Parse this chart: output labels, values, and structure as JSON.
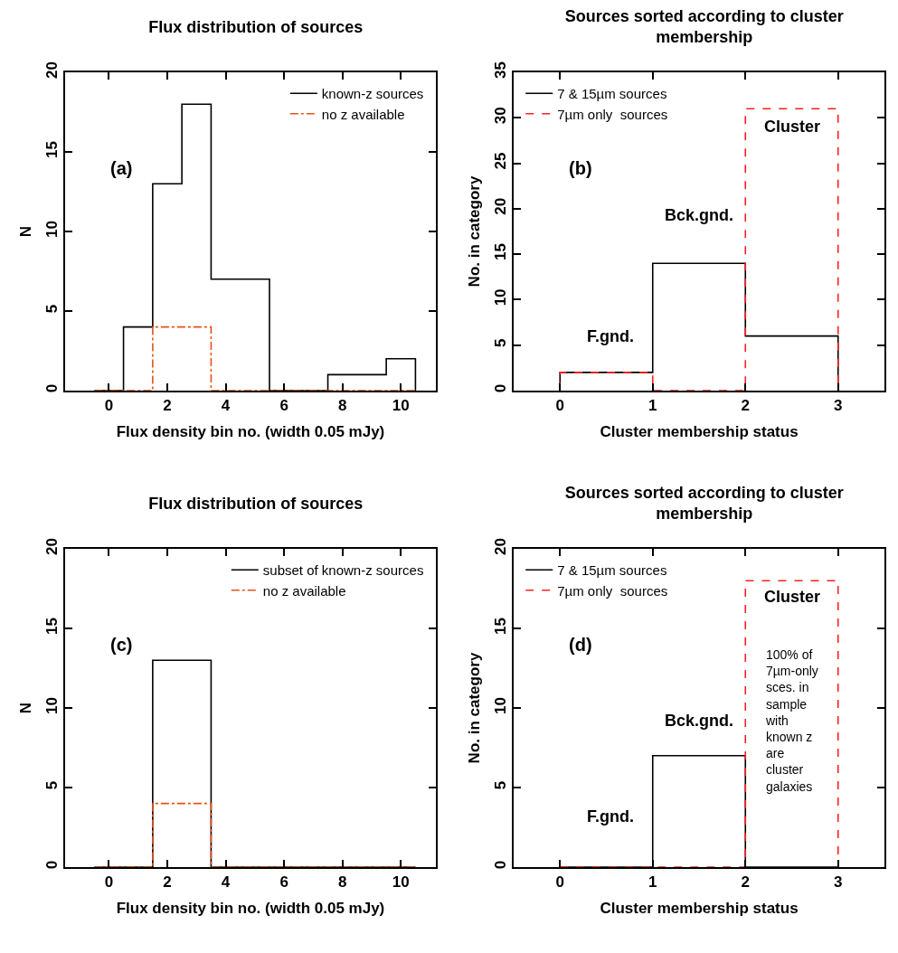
{
  "chart_data": [
    {
      "type": "histogram",
      "title": "Flux distribution of sources",
      "xlabel": "Flux density bin no. (width 0.05 mJy)",
      "ylabel": "N",
      "bins": [
        -0.5,
        0.5,
        1.5,
        2.5,
        3.5,
        4.5,
        5.5,
        6.5,
        7.5,
        8.5,
        9.5,
        10.5
      ],
      "series": [
        {
          "name": "known-z sources",
          "color": "#000000",
          "line_style": "solid",
          "values": [
            0,
            4,
            13,
            18,
            7,
            7,
            0,
            0,
            1,
            1,
            2
          ]
        },
        {
          "name": "no z available",
          "color": "#e8501a",
          "line_style": "dashdot",
          "values": [
            0,
            0,
            4,
            4,
            0,
            0,
            0,
            0,
            0,
            0,
            0
          ]
        }
      ],
      "xlim": [
        -1.5,
        11.2
      ],
      "xticks": [
        0,
        2,
        4,
        6,
        8,
        10
      ],
      "ylim": [
        0,
        20
      ],
      "yticks": [
        0,
        5,
        10,
        15,
        20
      ],
      "grid": false,
      "legend": "top right",
      "annotations": [
        "(a)"
      ]
    },
    {
      "type": "histogram",
      "title": "Sources sorted according to cluster membership",
      "xlabel": "Cluster membership status",
      "ylabel": "No. in category",
      "bins": [
        0,
        1,
        2,
        3
      ],
      "series": [
        {
          "name": "7 & 15µm sources",
          "color": "#000000",
          "line_style": "solid",
          "values": [
            2,
            14,
            6
          ]
        },
        {
          "name": "7µm only  sources",
          "color": "#ff2020",
          "line_style": "dashed",
          "values": [
            2,
            0,
            31
          ]
        }
      ],
      "xlim": [
        -0.5,
        3.5
      ],
      "xticks": [
        0,
        1,
        2,
        3
      ],
      "ylim": [
        0,
        35
      ],
      "yticks": [
        0,
        5,
        10,
        15,
        20,
        25,
        30,
        35
      ],
      "grid": false,
      "legend": "top left",
      "annotations": [
        "(b)",
        "F.gnd.",
        "Bck.gnd.",
        "Cluster"
      ]
    },
    {
      "type": "histogram",
      "title": "Flux distribution of sources",
      "xlabel": "Flux density bin no. (width 0.05 mJy)",
      "ylabel": "N",
      "bins": [
        -0.5,
        0.5,
        1.5,
        2.5,
        3.5,
        4.5,
        5.5,
        6.5,
        7.5,
        8.5,
        9.5,
        10.5
      ],
      "series": [
        {
          "name": "subset of known-z sources",
          "color": "#000000",
          "line_style": "solid",
          "values": [
            0,
            0,
            13,
            13,
            0,
            0,
            0,
            0,
            0,
            0,
            0
          ]
        },
        {
          "name": "no z available",
          "color": "#e8501a",
          "line_style": "dashdot",
          "values": [
            0,
            0,
            4,
            4,
            0,
            0,
            0,
            0,
            0,
            0,
            0
          ]
        }
      ],
      "xlim": [
        -1.5,
        11.2
      ],
      "xticks": [
        0,
        2,
        4,
        6,
        8,
        10
      ],
      "ylim": [
        0,
        20
      ],
      "yticks": [
        0,
        5,
        10,
        15,
        20
      ],
      "grid": false,
      "legend": "top right",
      "annotations": [
        "(c)"
      ]
    },
    {
      "type": "histogram",
      "title": "Sources sorted according to cluster membership",
      "xlabel": "Cluster membership status",
      "ylabel": "No. in category",
      "bins": [
        0,
        1,
        2,
        3
      ],
      "series": [
        {
          "name": "7 & 15µm sources",
          "color": "#000000",
          "line_style": "solid",
          "values": [
            0,
            7,
            0
          ]
        },
        {
          "name": "7µm only  sources",
          "color": "#ff2020",
          "line_style": "dashed",
          "values": [
            0,
            0,
            18
          ]
        }
      ],
      "xlim": [
        -0.5,
        3.5
      ],
      "xticks": [
        0,
        1,
        2,
        3
      ],
      "ylim": [
        0,
        20
      ],
      "yticks": [
        0,
        5,
        10,
        15,
        20
      ],
      "grid": false,
      "legend": "top left",
      "annotations": [
        "(d)",
        "F.gnd.",
        "Bck.gnd.",
        "Cluster",
        "100% of 7µm-only sces. in sample with known z are cluster galaxies"
      ]
    }
  ]
}
